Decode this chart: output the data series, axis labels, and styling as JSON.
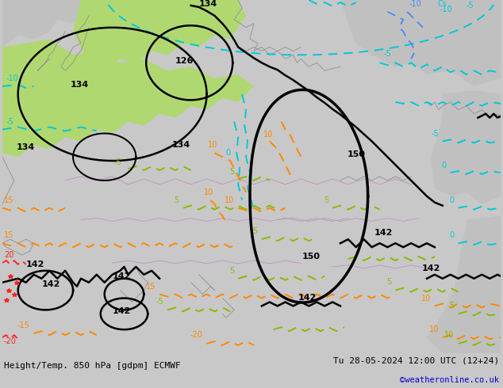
{
  "title_left": "Height/Temp. 850 hPa [gdpm] ECMWF",
  "title_right": "Tu 28-05-2024 12:00 UTC (12+24)",
  "credit": "©weatheronline.co.uk",
  "bg_color": "#c8c8c8",
  "land_green": "#c8e89a",
  "land_green2": "#b0d870",
  "sea_gray": "#c0c0c0",
  "fig_width": 6.34,
  "fig_height": 4.9,
  "dpi": 100,
  "bottom_bar_color": "#e8e8e8",
  "bottom_text_color": "#000000",
  "credit_color": "#0000cc",
  "black_contour_lw": 1.8,
  "temp_contour_lw": 1.4
}
